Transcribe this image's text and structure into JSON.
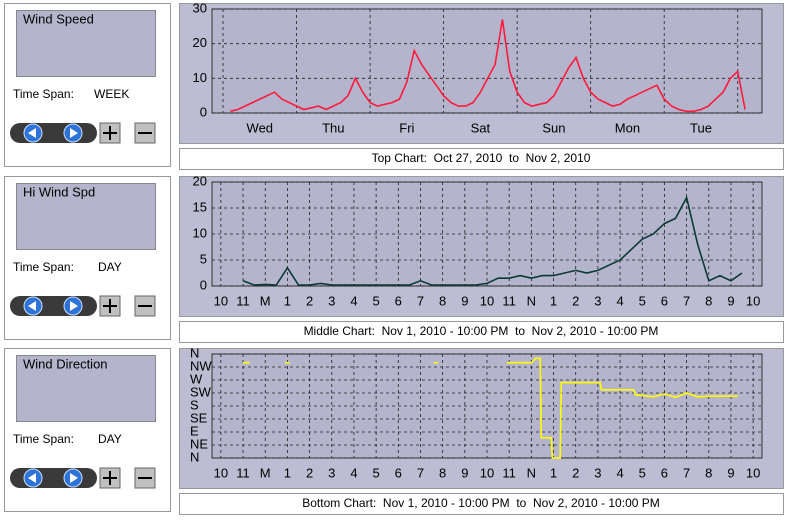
{
  "panels": [
    {
      "label": "Wind Speed",
      "time_span_label": "Time Span:",
      "time_span": "WEEK",
      "caption": "Top Chart:  Oct 27, 2010  to  Nov 2, 2010",
      "chart": {
        "type": "line",
        "color": "#ff1a3c",
        "grid": true,
        "xlim": [
          -0.15,
          7.33
        ],
        "ylim": [
          0,
          30
        ],
        "yticks": [
          0,
          10,
          20,
          30
        ],
        "xticks": [
          {
            "value": 0.5,
            "label": "Wed"
          },
          {
            "value": 1.5,
            "label": "Thu"
          },
          {
            "value": 2.5,
            "label": "Fri"
          },
          {
            "value": 3.5,
            "label": "Sat"
          },
          {
            "value": 4.5,
            "label": "Sun"
          },
          {
            "value": 5.5,
            "label": "Mon"
          },
          {
            "value": 6.5,
            "label": "Tue"
          }
        ],
        "xgrid": [
          0,
          1,
          2,
          3,
          4,
          5,
          6,
          7
        ],
        "x": [
          0.1,
          0.2,
          0.3,
          0.4,
          0.5,
          0.6,
          0.7,
          0.8,
          0.9,
          1.0,
          1.1,
          1.2,
          1.3,
          1.4,
          1.5,
          1.6,
          1.7,
          1.8,
          1.9,
          2.0,
          2.1,
          2.2,
          2.3,
          2.4,
          2.5,
          2.6,
          2.7,
          2.8,
          2.9,
          3.0,
          3.1,
          3.2,
          3.3,
          3.4,
          3.5,
          3.6,
          3.7,
          3.8,
          3.9,
          4.0,
          4.1,
          4.2,
          4.3,
          4.4,
          4.5,
          4.6,
          4.7,
          4.8,
          4.9,
          5.0,
          5.1,
          5.2,
          5.3,
          5.4,
          5.5,
          5.6,
          5.7,
          5.8,
          5.9,
          6.0,
          6.1,
          6.2,
          6.3,
          6.4,
          6.5,
          6.6,
          6.7,
          6.8,
          6.9,
          7.0,
          7.1
        ],
        "series": [
          {
            "values": [
              0.5,
              1,
              2,
              3,
              4,
              5,
              6,
              4,
              3,
              2,
              1,
              1.5,
              2,
              1,
              2,
              3,
              5,
              10,
              6,
              3,
              2,
              2.5,
              3,
              4,
              9,
              18,
              14,
              11,
              8,
              5,
              3,
              2,
              2,
              3,
              6,
              10,
              14,
              27,
              12,
              6,
              3,
              2,
              2.5,
              3,
              5,
              9,
              13,
              16,
              10,
              6,
              4,
              3,
              2,
              2.5,
              4,
              5,
              6,
              7,
              8,
              4,
              2,
              1,
              0.5,
              0.5,
              1,
              2,
              4,
              6,
              10,
              12,
              1
            ]
          }
        ]
      }
    },
    {
      "label": "Hi Wind Spd",
      "time_span_label": "Time Span:",
      "time_span": "DAY",
      "caption": "Middle Chart:  Nov 1, 2010 - 10:00 PM  to  Nov 2, 2010 - 10:00 PM",
      "chart": {
        "type": "line",
        "color": "#0b3a35",
        "grid": true,
        "xlim": [
          -0.4,
          24.4
        ],
        "ylim": [
          0,
          20
        ],
        "yticks": [
          0,
          5,
          10,
          15,
          20
        ],
        "xticks": [
          {
            "value": 0,
            "label": "10"
          },
          {
            "value": 1,
            "label": "11"
          },
          {
            "value": 2,
            "label": "M"
          },
          {
            "value": 3,
            "label": "1"
          },
          {
            "value": 4,
            "label": "2"
          },
          {
            "value": 5,
            "label": "3"
          },
          {
            "value": 6,
            "label": "4"
          },
          {
            "value": 7,
            "label": "5"
          },
          {
            "value": 8,
            "label": "6"
          },
          {
            "value": 9,
            "label": "7"
          },
          {
            "value": 10,
            "label": "8"
          },
          {
            "value": 11,
            "label": "9"
          },
          {
            "value": 12,
            "label": "10"
          },
          {
            "value": 13,
            "label": "11"
          },
          {
            "value": 14,
            "label": "N"
          },
          {
            "value": 15,
            "label": "1"
          },
          {
            "value": 16,
            "label": "2"
          },
          {
            "value": 17,
            "label": "3"
          },
          {
            "value": 18,
            "label": "4"
          },
          {
            "value": 19,
            "label": "5"
          },
          {
            "value": 20,
            "label": "6"
          },
          {
            "value": 21,
            "label": "7"
          },
          {
            "value": 22,
            "label": "8"
          },
          {
            "value": 23,
            "label": "9"
          },
          {
            "value": 24,
            "label": "10"
          }
        ],
        "x": [
          1,
          1.5,
          2,
          2.5,
          3,
          3.5,
          4,
          4.5,
          5,
          5.5,
          6,
          6.5,
          7,
          7.5,
          8,
          8.5,
          9,
          9.5,
          10,
          10.5,
          11,
          11.5,
          12,
          12.5,
          13,
          13.5,
          14,
          14.5,
          15,
          15.5,
          16,
          16.5,
          17,
          17.5,
          18,
          18.5,
          19,
          19.5,
          20,
          20.5,
          21,
          21.5,
          22,
          22.5,
          23,
          23.5
        ],
        "series": [
          {
            "values": [
              1,
              0.2,
              0.3,
              0.2,
              3.5,
              0.2,
              0.2,
              0.5,
              0.2,
              0.2,
              0.2,
              0.2,
              0.2,
              0.2,
              0.2,
              0.2,
              1,
              0.2,
              0.2,
              0.2,
              0.2,
              0.2,
              0.5,
              1.5,
              1.5,
              2,
              1.5,
              2,
              2,
              2.5,
              3,
              2.5,
              3,
              4,
              5,
              7,
              9,
              10,
              12,
              13,
              17,
              8,
              1,
              2,
              1,
              2.5
            ]
          }
        ]
      }
    },
    {
      "label": "Wind Direction",
      "time_span_label": "Time Span:",
      "time_span": "DAY",
      "caption": "Bottom Chart:  Nov 1, 2010 - 10:00 PM  to  Nov 2, 2010 - 10:00 PM",
      "chart": {
        "type": "line",
        "color": "#ffff00",
        "grid": true,
        "xlim": [
          -0.4,
          24.4
        ],
        "ylim": [
          0,
          360
        ],
        "yticks": [
          {
            "value": 0,
            "label": "N"
          },
          {
            "value": 45,
            "label": "NE"
          },
          {
            "value": 90,
            "label": "E"
          },
          {
            "value": 135,
            "label": "SE"
          },
          {
            "value": 180,
            "label": "S"
          },
          {
            "value": 225,
            "label": "SW"
          },
          {
            "value": 270,
            "label": "W"
          },
          {
            "value": 315,
            "label": "NW"
          },
          {
            "value": 360,
            "label": "N"
          }
        ],
        "xticks": [
          {
            "value": 0,
            "label": "10"
          },
          {
            "value": 1,
            "label": "11"
          },
          {
            "value": 2,
            "label": "M"
          },
          {
            "value": 3,
            "label": "1"
          },
          {
            "value": 4,
            "label": "2"
          },
          {
            "value": 5,
            "label": "3"
          },
          {
            "value": 6,
            "label": "4"
          },
          {
            "value": 7,
            "label": "5"
          },
          {
            "value": 8,
            "label": "6"
          },
          {
            "value": 9,
            "label": "7"
          },
          {
            "value": 10,
            "label": "8"
          },
          {
            "value": 11,
            "label": "9"
          },
          {
            "value": 12,
            "label": "10"
          },
          {
            "value": 13,
            "label": "11"
          },
          {
            "value": 14,
            "label": "N"
          },
          {
            "value": 15,
            "label": "1"
          },
          {
            "value": 16,
            "label": "2"
          },
          {
            "value": 17,
            "label": "3"
          },
          {
            "value": 18,
            "label": "4"
          },
          {
            "value": 19,
            "label": "5"
          },
          {
            "value": 20,
            "label": "6"
          },
          {
            "value": 21,
            "label": "7"
          },
          {
            "value": 22,
            "label": "8"
          },
          {
            "value": 23,
            "label": "9"
          },
          {
            "value": 24,
            "label": "10"
          }
        ],
        "x": [
          1.0,
          1.3,
          2.0,
          2.9,
          3.1,
          6,
          9.6,
          9.8,
          11,
          12.9,
          13.5,
          14.0,
          14.2,
          14.4,
          14.45,
          14.9,
          14.95,
          15.3,
          15.35,
          17.1,
          17.15,
          18.6,
          18.7,
          19.5,
          20,
          20.5,
          21,
          21.5,
          22,
          22.5,
          23.3
        ],
        "series": [
          {
            "values": [
              330,
              330,
              null,
              330,
              330,
              null,
              330,
              330,
              null,
              330,
              330,
              330,
              345,
              345,
              70,
              70,
              0,
              0,
              261,
              261,
              236,
              236,
              219,
              212,
              222,
              210,
              225,
              212,
              214,
              214,
              214
            ]
          }
        ]
      }
    }
  ]
}
